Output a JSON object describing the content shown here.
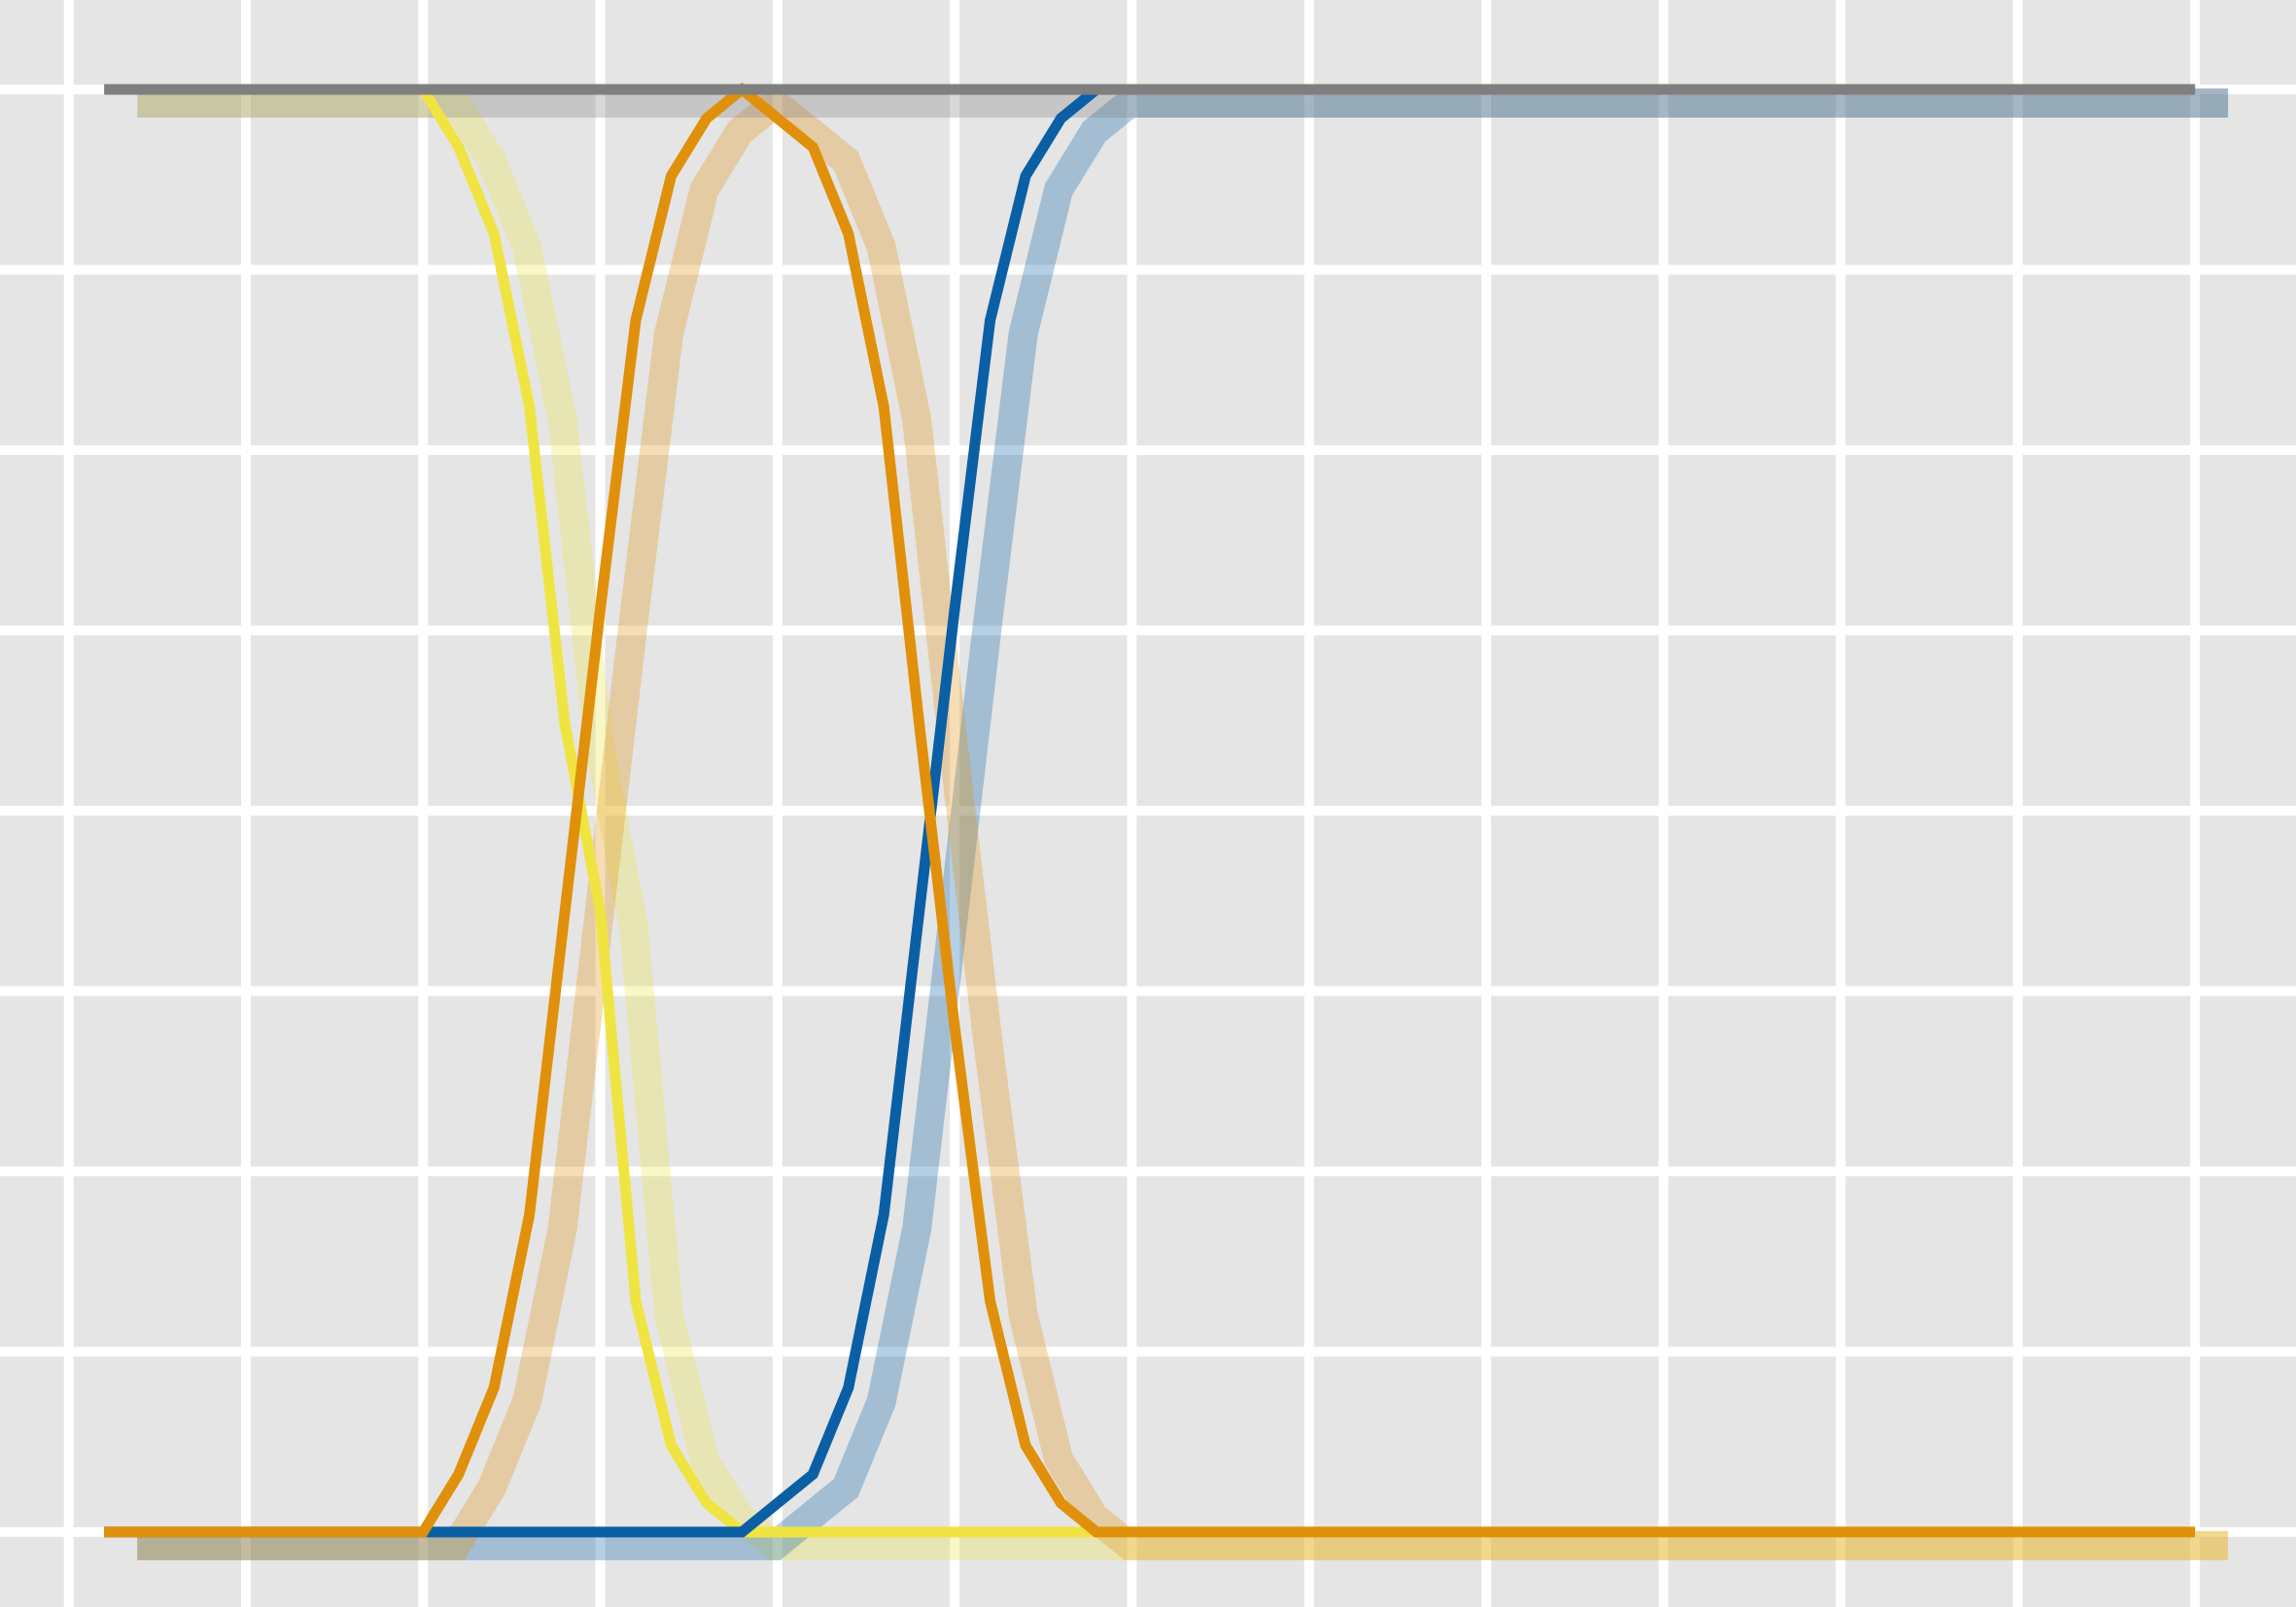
{
  "chart_data": {
    "type": "line",
    "xlim": [
      -0.388,
      12.57
    ],
    "ylim": [
      -0.052,
      1.062
    ],
    "xticks": [
      0,
      1,
      2,
      3,
      4,
      5,
      6,
      7,
      8,
      9,
      10,
      11,
      12
    ],
    "yticks": [
      0,
      0.125,
      0.25,
      0.375,
      0.5,
      0.625,
      0.75,
      0.875,
      1
    ],
    "grid": true,
    "series": [
      {
        "color": "#f0e442",
        "x": [
          0.2,
          2.0,
          2.2,
          2.4,
          2.6,
          2.8,
          3.0,
          3.2,
          3.4,
          3.6,
          3.8,
          12.0
        ],
        "values": [
          1,
          1,
          0.96,
          0.9,
          0.78,
          0.56,
          0.43,
          0.16,
          0.06,
          0.02,
          0,
          0
        ]
      },
      {
        "color": "#0a5fa5",
        "x": [
          0.2,
          3.8,
          4.0,
          4.2,
          4.4,
          4.6,
          4.8,
          5.0,
          5.2,
          5.4,
          5.6,
          5.8,
          12.0
        ],
        "values": [
          0,
          0,
          0.02,
          0.04,
          0.1,
          0.22,
          0.43,
          0.64,
          0.84,
          0.94,
          0.98,
          1,
          1
        ]
      },
      {
        "color": "#e0900a",
        "x": [
          0.2,
          2.0,
          2.2,
          2.4,
          2.6,
          2.8,
          3.0,
          3.2,
          3.4,
          3.6,
          3.8,
          4.0,
          4.2,
          4.4,
          4.6,
          4.8,
          5.0,
          5.2,
          5.4,
          5.6,
          5.8,
          12.0
        ],
        "values": [
          0,
          0,
          0.04,
          0.1,
          0.22,
          0.43,
          0.64,
          0.84,
          0.94,
          0.98,
          1,
          0.98,
          0.96,
          0.9,
          0.78,
          0.56,
          0.35,
          0.16,
          0.06,
          0.02,
          0,
          0
        ]
      },
      {
        "color": "#7f7f7f",
        "x": [
          0.2,
          12.0
        ],
        "values": [
          1,
          1
        ]
      }
    ]
  }
}
